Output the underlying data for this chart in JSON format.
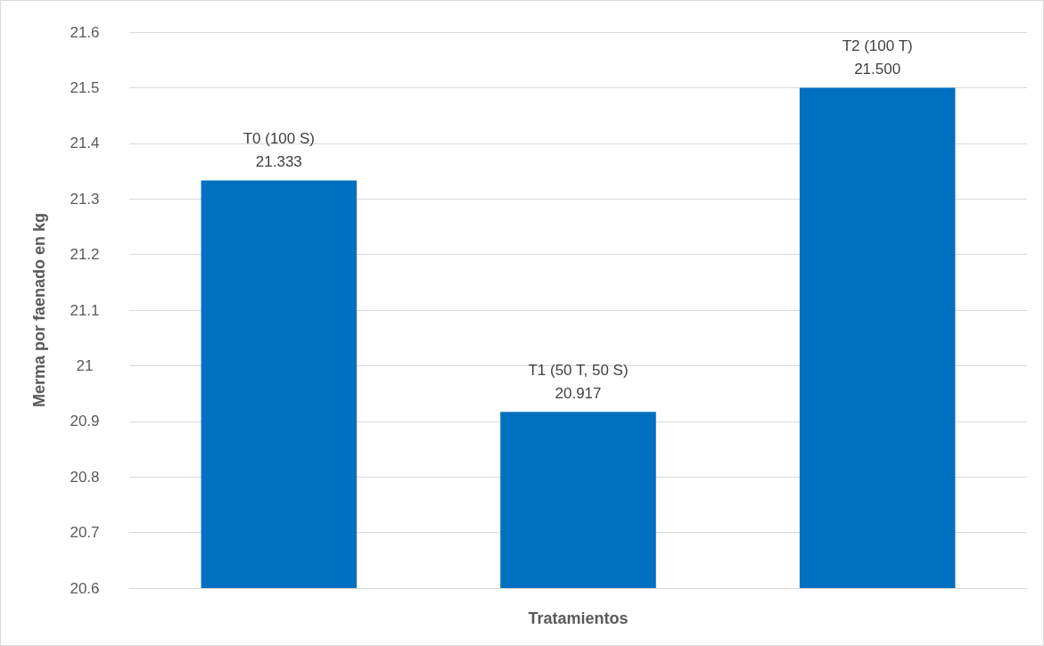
{
  "chart_data": {
    "type": "bar",
    "categories": [
      "T0 (100 S)",
      "T1 (50 T, 50 S)",
      "T2 (100 T)"
    ],
    "values": [
      21.333,
      20.917,
      21.5
    ],
    "value_labels": [
      "21.333",
      "20.917",
      "21.500"
    ],
    "color": "#0070c0",
    "xlabel": "Tratamientos",
    "ylabel": "Merma por faenado en kg",
    "ylim": [
      20.6,
      21.6
    ],
    "yticks": [
      20.6,
      20.7,
      20.8,
      20.9,
      21,
      21.1,
      21.2,
      21.3,
      21.4,
      21.5,
      21.6
    ],
    "grid": "y"
  }
}
